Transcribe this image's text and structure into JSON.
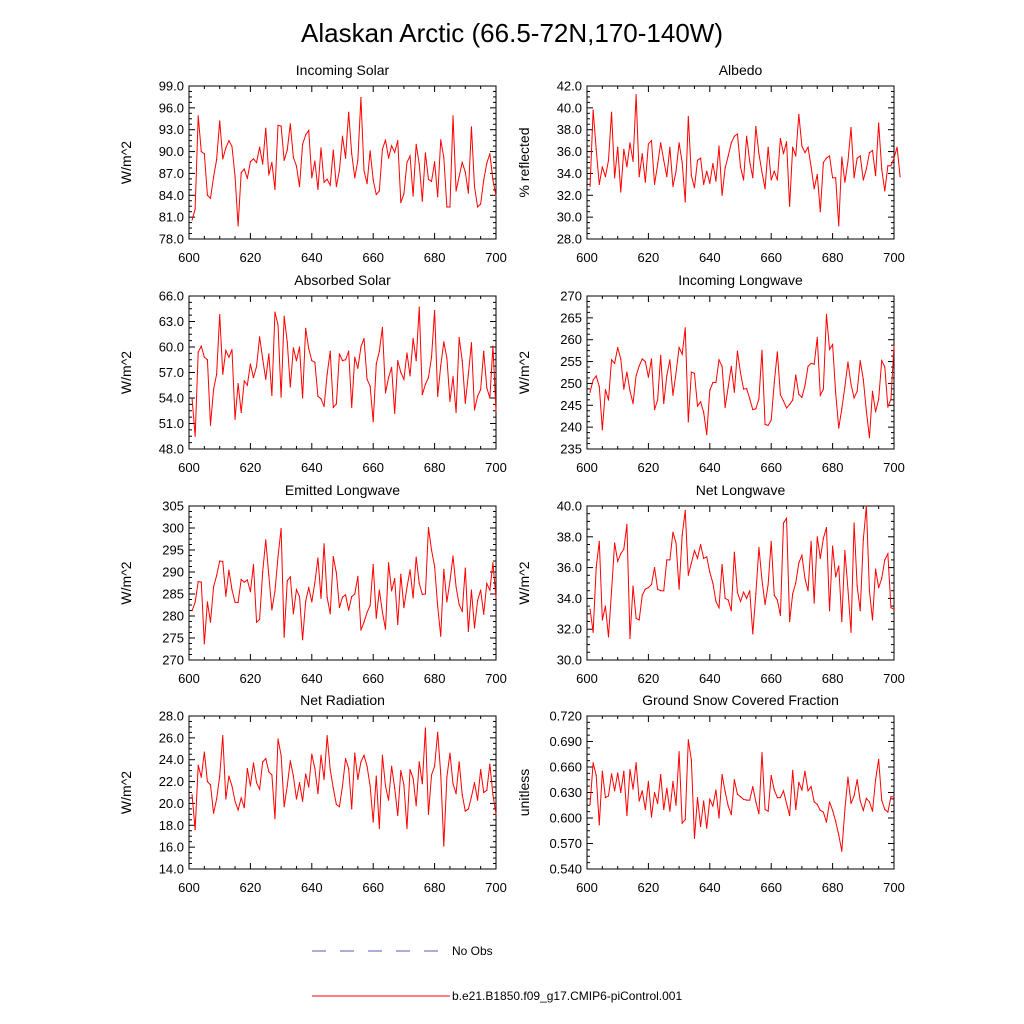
{
  "title": "Alaskan Arctic (66.5-72N,170-140W)",
  "colors": {
    "model": "#ff0000",
    "obs": "#5a5ab4",
    "axis": "#000000"
  },
  "legend": [
    {
      "label": "No Obs",
      "color": "#5a5ab4",
      "style": "dashed"
    },
    {
      "label": "b.e21.B1850.f09_g17.CMIP6-piControl.001",
      "color": "#ff0000",
      "style": "solid"
    }
  ],
  "chart_data": [
    {
      "type": "line",
      "title": "Incoming Solar",
      "xlabel": "",
      "ylabel": "W/m^2",
      "xlim": [
        600,
        700
      ],
      "ylim": [
        78.0,
        99.0
      ],
      "xticks": [
        600,
        620,
        640,
        660,
        680,
        700
      ],
      "xtick_labels": [
        "600",
        "620",
        "640",
        "660",
        "680",
        "700"
      ],
      "yticks": [
        78.0,
        81.0,
        84.0,
        87.0,
        90.0,
        93.0,
        96.0,
        99.0
      ],
      "ytick_labels": [
        "78.0",
        "81.0",
        "84.0",
        "87.0",
        "90.0",
        "93.0",
        "96.0",
        "99.0"
      ],
      "x_start": 601,
      "values": [
        80.6,
        82.1,
        94.9,
        90.0,
        89.7,
        84.0,
        83.6,
        86.5,
        88.9,
        94.2,
        89.0,
        90.5,
        91.5,
        90.7,
        86.6,
        79.8,
        87.1,
        87.6,
        86.3,
        88.6,
        89.0,
        88.5,
        90.6,
        88.3,
        93.2,
        86.8,
        88.5,
        84.8,
        93.6,
        93.5,
        88.8,
        90.2,
        93.8,
        89.2,
        88.0,
        85.2,
        91.0,
        92.3,
        92.9,
        86.4,
        88.7,
        84.8,
        90.5,
        85.8,
        86.2,
        85.4,
        90.2,
        85.2,
        87.4,
        92.1,
        89.1,
        95.4,
        89.7,
        86.4,
        88.8,
        97.4,
        87.4,
        85.6,
        90.1,
        86.1,
        84.1,
        84.6,
        90.3,
        91.6,
        89.1,
        90.8,
        89.9,
        91.5,
        83.0,
        84.2,
        88.5,
        89.4,
        83.9,
        91.0,
        88.3,
        83.2,
        89.8,
        86.2,
        85.9,
        88.6,
        83.8,
        91.6,
        89.2,
        82.4,
        82.4,
        94.9,
        84.6,
        86.6,
        88.5,
        87.2,
        84.3,
        93.4,
        85.2,
        82.4,
        82.8,
        86.1,
        88.4,
        89.7,
        86.1,
        83.9
      ]
    },
    {
      "type": "line",
      "title": "Albedo",
      "xlabel": "",
      "ylabel": "% reflected",
      "xlim": [
        600,
        700
      ],
      "ylim": [
        28.0,
        42.0
      ],
      "xticks": [
        600,
        620,
        640,
        660,
        680,
        700
      ],
      "xtick_labels": [
        "600",
        "620",
        "640",
        "660",
        "680",
        "700"
      ],
      "yticks": [
        28.0,
        30.0,
        32.0,
        34.0,
        36.0,
        38.0,
        40.0,
        42.0
      ],
      "ytick_labels": [
        "28.0",
        "30.0",
        "32.0",
        "34.0",
        "36.0",
        "38.0",
        "40.0",
        "42.0"
      ],
      "x_start": 601,
      "values": [
        32.8,
        39.8,
        36.2,
        33.0,
        34.6,
        33.7,
        35.2,
        39.6,
        33.6,
        36.4,
        32.3,
        36.2,
        34.6,
        36.8,
        35.1,
        41.2,
        33.7,
        35.8,
        33.2,
        36.7,
        37.0,
        33.0,
        34.8,
        36.8,
        35.2,
        33.7,
        36.4,
        32.8,
        34.2,
        36.8,
        35.0,
        31.4,
        39.2,
        33.8,
        32.7,
        35.2,
        35.4,
        33.0,
        34.2,
        33.1,
        34.9,
        33.3,
        36.5,
        32.0,
        34.5,
        35.6,
        36.8,
        37.4,
        37.6,
        34.6,
        33.4,
        37.4,
        35.1,
        33.6,
        38.3,
        35.8,
        34.1,
        32.6,
        36.4,
        33.4,
        34.2,
        33.4,
        37.2,
        35.8,
        36.9,
        31.0,
        36.4,
        35.6,
        39.4,
        36.5,
        35.9,
        36.4,
        34.6,
        32.6,
        33.9,
        30.5,
        35.0,
        35.4,
        35.6,
        33.6,
        33.6,
        29.2,
        35.5,
        33.2,
        35.1,
        38.2,
        33.6,
        35.4,
        35.6,
        33.4,
        34.4,
        35.9,
        36.1,
        33.8,
        38.6,
        34.4,
        32.4,
        34.7,
        34.7,
        35.4,
        36.4,
        33.7
      ]
    },
    {
      "type": "line",
      "title": "Absorbed Solar",
      "xlabel": "",
      "ylabel": "W/m^2",
      "xlim": [
        600,
        700
      ],
      "ylim": [
        48.0,
        66.0
      ],
      "xticks": [
        600,
        620,
        640,
        660,
        680,
        700
      ],
      "xtick_labels": [
        "600",
        "620",
        "640",
        "660",
        "680",
        "700"
      ],
      "yticks": [
        48.0,
        51.0,
        54.0,
        57.0,
        60.0,
        63.0,
        66.0
      ],
      "ytick_labels": [
        "48.0",
        "51.0",
        "54.0",
        "57.0",
        "60.0",
        "63.0",
        "66.0"
      ],
      "x_start": 601,
      "values": [
        53.9,
        49.5,
        59.4,
        60.1,
        58.8,
        58.5,
        50.8,
        55.0,
        56.8,
        63.8,
        56.8,
        59.6,
        58.8,
        59.7,
        51.5,
        55.7,
        52.3,
        56.0,
        55.5,
        58.0,
        56.4,
        57.7,
        61.2,
        58.6,
        56.2,
        59.2,
        54.3,
        64.1,
        62.6,
        54.1,
        63.6,
        60.6,
        55.3,
        59.9,
        58.4,
        60.0,
        54.0,
        62.2,
        59.8,
        58.4,
        58.2,
        54.2,
        53.9,
        53.0,
        56.8,
        59.5,
        52.9,
        53.3,
        59.2,
        58.4,
        58.5,
        59.5,
        52.9,
        58.8,
        57.5,
        60.0,
        61.0,
        56.2,
        55.4,
        51.2,
        58.0,
        59.5,
        62.3,
        54.6,
        56.4,
        57.6,
        52.2,
        58.4,
        57.0,
        56.2,
        59.3,
        56.6,
        61.0,
        58.4,
        64.7,
        54.4,
        55.6,
        56.4,
        58.8,
        64.3,
        54.2,
        57.8,
        60.6,
        58.7,
        53.6,
        56.5,
        52.3,
        61.1,
        58.4,
        53.4,
        56.8,
        60.5,
        52.6,
        54.2,
        55.0,
        59.5,
        55.2,
        54.0,
        60.1,
        52.4
      ]
    },
    {
      "type": "line",
      "title": "Incoming Longwave",
      "xlabel": "",
      "ylabel": "W/m^2",
      "xlim": [
        600,
        700
      ],
      "ylim": [
        235,
        270
      ],
      "xticks": [
        600,
        620,
        640,
        660,
        680,
        700
      ],
      "xtick_labels": [
        "600",
        "620",
        "640",
        "660",
        "680",
        "700"
      ],
      "yticks": [
        235,
        240,
        245,
        250,
        255,
        260,
        265,
        270
      ],
      "ytick_labels": [
        "235",
        "240",
        "245",
        "250",
        "255",
        "260",
        "265",
        "270"
      ],
      "x_start": 601,
      "values": [
        248.0,
        250.8,
        251.7,
        249.3,
        239.4,
        248.6,
        246.2,
        255.4,
        254.6,
        258.2,
        255.6,
        248.7,
        252.6,
        248.3,
        245.4,
        251.8,
        254.0,
        255.6,
        255.0,
        251.4,
        255.6,
        244.0,
        246.2,
        256.4,
        245.4,
        251.8,
        255.4,
        247.3,
        252.4,
        258.2,
        256.7,
        262.7,
        241.2,
        252.6,
        252.3,
        244.8,
        245.8,
        243.4,
        238.3,
        248.4,
        250.2,
        250.2,
        255.4,
        253.9,
        244.5,
        249.2,
        253.9,
        248.0,
        257.4,
        252.4,
        248.7,
        248.8,
        246.5,
        244.0,
        244.2,
        246.5,
        257.6,
        240.6,
        240.4,
        241.6,
        250.2,
        257.2,
        247.4,
        246.0,
        244.4,
        245.2,
        246.2,
        251.9,
        247.5,
        246.8,
        249.5,
        253.9,
        254.6,
        254.4,
        260.5,
        247.3,
        248.7,
        265.8,
        257.8,
        258.9,
        247.8,
        239.8,
        244.2,
        249.2,
        254.9,
        249.8,
        246.7,
        248.2,
        255.2,
        250.9,
        243.7,
        237.6,
        248.2,
        243.5,
        246.4,
        255.2,
        253.8,
        244.6,
        246.4,
        258.6
      ]
    },
    {
      "type": "line",
      "title": "Emitted Longwave",
      "xlabel": "",
      "ylabel": "W/m^2",
      "xlim": [
        600,
        700
      ],
      "ylim": [
        270,
        305
      ],
      "xticks": [
        600,
        620,
        640,
        660,
        680,
        700
      ],
      "xtick_labels": [
        "600",
        "620",
        "640",
        "660",
        "680",
        "700"
      ],
      "yticks": [
        270,
        275,
        280,
        285,
        290,
        295,
        300,
        305
      ],
      "ytick_labels": [
        "270",
        "275",
        "280",
        "285",
        "290",
        "295",
        "300",
        "305"
      ],
      "x_start": 601,
      "values": [
        281.2,
        283.1,
        287.8,
        287.7,
        273.7,
        283.2,
        278.6,
        286.6,
        289.2,
        292.5,
        292.4,
        284.5,
        290.4,
        286.0,
        283.1,
        283.1,
        288.3,
        287.7,
        288.2,
        285.5,
        291.7,
        278.6,
        279.2,
        290.0,
        297.3,
        289.2,
        281.4,
        285.6,
        293.5,
        299.9,
        275.2,
        288.0,
        288.9,
        280.5,
        286.0,
        284.4,
        274.6,
        283.3,
        286.5,
        283.2,
        287.6,
        293.2,
        284.0,
        296.4,
        284.2,
        280.5,
        293.5,
        289.8,
        281.9,
        284.3,
        284.8,
        281.3,
        284.4,
        285.0,
        289.0,
        276.8,
        278.6,
        280.8,
        282.4,
        291.7,
        279.5,
        285.9,
        280.9,
        277.0,
        292.1,
        285.7,
        288.5,
        278.1,
        289.5,
        281.9,
        286.5,
        290.5,
        284.1,
        293.4,
        287.4,
        284.9,
        285.0,
        300.1,
        295.0,
        291.3,
        282.2,
        275.4,
        290.6,
        283.2,
        287.9,
        293.6,
        286.6,
        282.6,
        281.0,
        290.9,
        276.5,
        285.9,
        277.3,
        283.5,
        285.9,
        280.4,
        287.4,
        285.9,
        292.1,
        284.1
      ]
    },
    {
      "type": "line",
      "title": "Net Longwave",
      "xlabel": "",
      "ylabel": "W/m^2",
      "xlim": [
        600,
        700
      ],
      "ylim": [
        30.0,
        40.0
      ],
      "xticks": [
        600,
        620,
        640,
        660,
        680,
        700
      ],
      "xtick_labels": [
        "600",
        "620",
        "640",
        "660",
        "680",
        "700"
      ],
      "yticks": [
        30.0,
        32.0,
        34.0,
        36.0,
        38.0,
        40.0
      ],
      "ytick_labels": [
        "30.0",
        "32.0",
        "34.0",
        "36.0",
        "38.0",
        "40.0"
      ],
      "x_start": 601,
      "values": [
        33.3,
        31.8,
        36.0,
        37.7,
        32.6,
        33.5,
        31.5,
        34.5,
        37.6,
        36.4,
        36.9,
        37.2,
        38.8,
        31.4,
        34.8,
        32.7,
        32.6,
        34.2,
        34.6,
        34.7,
        34.9,
        36.0,
        34.6,
        34.5,
        34.5,
        36.5,
        36.5,
        38.3,
        37.6,
        34.6,
        38.1,
        39.7,
        35.5,
        36.3,
        37.1,
        36.6,
        37.5,
        36.6,
        36.7,
        35.7,
        35.0,
        33.8,
        33.4,
        36.2,
        34.0,
        33.9,
        33.2,
        37.0,
        34.4,
        33.8,
        34.4,
        34.0,
        34.5,
        31.7,
        34.3,
        37.3,
        35.2,
        33.6,
        34.9,
        37.7,
        34.2,
        33.9,
        32.9,
        38.9,
        39.2,
        32.5,
        34.3,
        35.0,
        36.3,
        36.8,
        35.3,
        34.5,
        37.7,
        33.7,
        38.0,
        36.6,
        37.9,
        38.6,
        33.2,
        37.4,
        35.4,
        36.1,
        32.5,
        37.1,
        34.6,
        31.8,
        38.9,
        34.8,
        33.2,
        37.8,
        40.0,
        34.5,
        32.6,
        35.9,
        34.7,
        35.3,
        36.5,
        36.9,
        33.4,
        33.3
      ]
    },
    {
      "type": "line",
      "title": "Net Radiation",
      "xlabel": "",
      "ylabel": "W/m^2",
      "xlim": [
        600,
        700
      ],
      "ylim": [
        14.0,
        28.0
      ],
      "xticks": [
        600,
        620,
        640,
        660,
        680,
        700
      ],
      "xtick_labels": [
        "600",
        "620",
        "640",
        "660",
        "680",
        "700"
      ],
      "yticks": [
        14.0,
        16.0,
        18.0,
        20.0,
        22.0,
        24.0,
        26.0,
        28.0
      ],
      "ytick_labels": [
        "14.0",
        "16.0",
        "18.0",
        "20.0",
        "22.0",
        "24.0",
        "26.0",
        "28.0"
      ],
      "x_start": 601,
      "values": [
        20.8,
        17.6,
        23.5,
        22.4,
        24.7,
        22.0,
        21.7,
        19.1,
        20.4,
        22.5,
        26.2,
        20.4,
        22.5,
        21.6,
        20.2,
        19.4,
        20.5,
        19.6,
        23.2,
        21.6,
        23.7,
        21.9,
        21.3,
        23.8,
        24.1,
        22.9,
        22.6,
        18.6,
        25.9,
        24.4,
        19.7,
        21.6,
        23.9,
        22.5,
        20.4,
        21.9,
        20.2,
        22.7,
        21.5,
        24.5,
        23.2,
        20.9,
        24.4,
        22.2,
        26.2,
        23.1,
        21.4,
        19.9,
        19.7,
        21.6,
        24.1,
        23.2,
        19.5,
        24.6,
        22.2,
        23.8,
        24.4,
        23.4,
        21.6,
        18.3,
        22.5,
        17.7,
        24.4,
        21.6,
        20.3,
        23.4,
        21.4,
        18.9,
        23.0,
        21.7,
        17.7,
        23.1,
        22.3,
        19.8,
        23.8,
        21.8,
        26.9,
        19.0,
        22.6,
        23.4,
        26.5,
        22.7,
        16.1,
        22.4,
        24.6,
        21.8,
        20.9,
        23.8,
        20.8,
        19.3,
        19.5,
        20.6,
        21.9,
        20.3,
        23.1,
        21.0,
        21.2,
        23.6,
        20.8,
        19.0
      ]
    },
    {
      "type": "line",
      "title": "Ground Snow Covered Fraction",
      "xlabel": "",
      "ylabel": "unitless",
      "xlim": [
        600,
        700
      ],
      "ylim": [
        0.54,
        0.72
      ],
      "xticks": [
        600,
        620,
        640,
        660,
        680,
        700
      ],
      "xtick_labels": [
        "600",
        "620",
        "640",
        "660",
        "680",
        "700"
      ],
      "yticks": [
        0.54,
        0.57,
        0.6,
        0.63,
        0.66,
        0.69,
        0.72
      ],
      "ytick_labels": [
        "0.540",
        "0.570",
        "0.600",
        "0.630",
        "0.660",
        "0.690",
        "0.720"
      ],
      "x_start": 601,
      "values": [
        0.616,
        0.665,
        0.65,
        0.592,
        0.655,
        0.624,
        0.626,
        0.652,
        0.632,
        0.653,
        0.63,
        0.655,
        0.603,
        0.657,
        0.634,
        0.665,
        0.62,
        0.632,
        0.61,
        0.643,
        0.601,
        0.63,
        0.617,
        0.651,
        0.61,
        0.635,
        0.608,
        0.643,
        0.615,
        0.678,
        0.594,
        0.598,
        0.692,
        0.668,
        0.576,
        0.624,
        0.59,
        0.62,
        0.588,
        0.622,
        0.614,
        0.633,
        0.6,
        0.651,
        0.631,
        0.614,
        0.604,
        0.645,
        0.628,
        0.625,
        0.622,
        0.621,
        0.621,
        0.637,
        0.619,
        0.605,
        0.677,
        0.61,
        0.608,
        0.65,
        0.633,
        0.624,
        0.624,
        0.632,
        0.617,
        0.603,
        0.656,
        0.61,
        0.642,
        0.633,
        0.655,
        0.632,
        0.637,
        0.619,
        0.616,
        0.609,
        0.607,
        0.595,
        0.619,
        0.609,
        0.596,
        0.58,
        0.561,
        0.61,
        0.648,
        0.617,
        0.626,
        0.645,
        0.62,
        0.609,
        0.623,
        0.619,
        0.608,
        0.645,
        0.669,
        0.621,
        0.61,
        0.607,
        0.625,
        0.625
      ]
    }
  ]
}
